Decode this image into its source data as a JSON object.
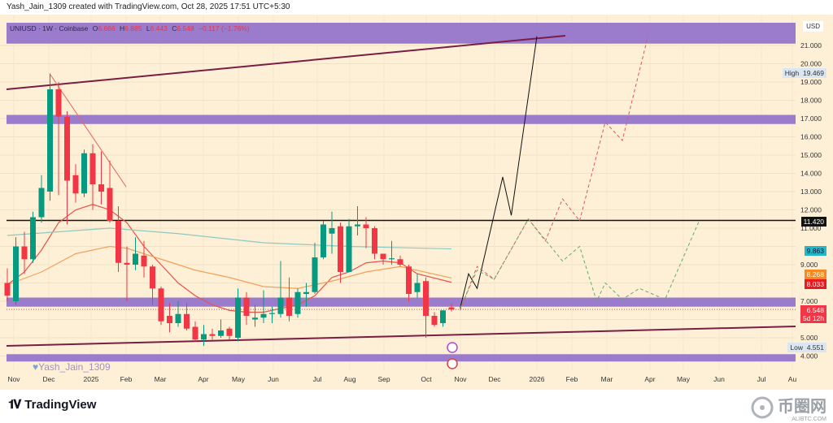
{
  "credit": "Yash_Jain_1309 created with TradingView.com, Oct 28, 2025 17:51 UTC+5:30",
  "symbol_bar": {
    "symbol": "UNIUSD · 1W · Coinbase",
    "o_label": "O",
    "o": "6.666",
    "h_label": "H",
    "h": "6.885",
    "l_label": "L",
    "l": "6.443",
    "c_label": "C",
    "c": "6.548",
    "change": "−0.117 (−1.76%)"
  },
  "currency": "USD",
  "signature": "Yash_Jain_1309",
  "branding": {
    "tradingview": "TradingView",
    "watermark_cn": "币圈网",
    "watermark_en": "ALIBTC.COM"
  },
  "price_labels": {
    "high_label": "High",
    "high": "19.469",
    "level": "11.420",
    "ma_teal": "9.863",
    "ma_orange": "8.268",
    "ma_red": "8.033",
    "last": "6.548",
    "countdown": "5d 12h",
    "low_label": "Low",
    "low": "4.551"
  },
  "colors": {
    "up": "#089981",
    "down": "#f23645",
    "band": "#9b7ccc",
    "trend": "#7a1d45",
    "bg": "#fdf0d6"
  },
  "chart_data": {
    "type": "candlestick",
    "title": "UNIUSD 1W Coinbase",
    "ylabel": "USD",
    "ylim": [
      3.7,
      21.6
    ],
    "y_ticks": [
      "21.000",
      "20.000",
      "19.000",
      "18.000",
      "17.000",
      "16.000",
      "15.000",
      "14.000",
      "13.000",
      "12.000",
      "11.000",
      "9.000",
      "7.000",
      "5.000",
      "4.000"
    ],
    "x_ticks": [
      "Nov",
      "Dec",
      "2025",
      "Feb",
      "Mar",
      "Apr",
      "May",
      "Jun",
      "Jul",
      "Aug",
      "Sep",
      "Oct",
      "Nov",
      "Dec",
      "2026",
      "Feb",
      "Mar",
      "Apr",
      "May",
      "Jun",
      "Jul",
      "Au"
    ],
    "candles_ohlc": [
      [
        8.0,
        8.8,
        7.0,
        7.3
      ],
      [
        7.0,
        10.5,
        6.8,
        10.0
      ],
      [
        10.0,
        10.8,
        8.5,
        9.3
      ],
      [
        9.3,
        11.9,
        9.1,
        11.6
      ],
      [
        11.6,
        13.9,
        11.3,
        13.2
      ],
      [
        13.0,
        19.469,
        12.5,
        18.6
      ],
      [
        18.6,
        19.0,
        12.8,
        17.1
      ],
      [
        17.1,
        17.4,
        11.2,
        13.6
      ],
      [
        13.9,
        14.5,
        12.4,
        12.9
      ],
      [
        12.9,
        15.3,
        12.7,
        15.1
      ],
      [
        15.1,
        15.6,
        12.0,
        13.4
      ],
      [
        13.4,
        15.2,
        12.3,
        13.0
      ],
      [
        13.2,
        14.7,
        11.3,
        11.4
      ],
      [
        11.4,
        12.2,
        8.6,
        9.1
      ],
      [
        9.1,
        10.0,
        7.0,
        9.0
      ],
      [
        9.0,
        10.5,
        8.7,
        9.6
      ],
      [
        9.5,
        10.3,
        8.3,
        8.9
      ],
      [
        8.9,
        9.0,
        6.8,
        7.7
      ],
      [
        7.7,
        7.8,
        5.7,
        5.9
      ],
      [
        6.2,
        6.9,
        5.3,
        5.8
      ],
      [
        5.8,
        7.0,
        5.6,
        6.3
      ],
      [
        6.3,
        6.9,
        5.4,
        5.5
      ],
      [
        5.6,
        5.9,
        4.8,
        4.9
      ],
      [
        4.9,
        5.7,
        4.551,
        5.2
      ],
      [
        5.2,
        5.5,
        4.9,
        5.1
      ],
      [
        5.1,
        6.0,
        5.0,
        5.4
      ],
      [
        5.5,
        5.6,
        4.9,
        5.1
      ],
      [
        5.0,
        7.7,
        4.8,
        7.2
      ],
      [
        7.2,
        7.5,
        5.7,
        6.2
      ],
      [
        6.0,
        6.8,
        5.6,
        6.1
      ],
      [
        6.1,
        7.6,
        5.8,
        6.3
      ],
      [
        6.3,
        6.7,
        5.8,
        6.35
      ],
      [
        6.3,
        9.2,
        6.1,
        7.2
      ],
      [
        7.2,
        8.3,
        5.9,
        6.2
      ],
      [
        6.3,
        7.7,
        6.1,
        7.5
      ],
      [
        7.4,
        8.0,
        6.7,
        7.5
      ],
      [
        7.5,
        10.2,
        7.4,
        9.4
      ],
      [
        9.4,
        11.4,
        9.3,
        11.2
      ],
      [
        10.7,
        11.9,
        9.6,
        11.0
      ],
      [
        11.1,
        11.3,
        8.0,
        8.6
      ],
      [
        8.6,
        11.5,
        8.6,
        11.1
      ],
      [
        11.1,
        12.2,
        10.6,
        11.2
      ],
      [
        11.2,
        11.6,
        9.9,
        11.0
      ],
      [
        11.0,
        11.1,
        9.3,
        9.6
      ],
      [
        9.6,
        9.6,
        9.0,
        9.3
      ],
      [
        9.3,
        10.3,
        9.0,
        9.35
      ],
      [
        9.3,
        9.5,
        8.9,
        9.0
      ],
      [
        8.9,
        9.0,
        7.0,
        7.4
      ],
      [
        7.5,
        8.5,
        7.2,
        8.0
      ],
      [
        8.1,
        8.3,
        5.0,
        6.2
      ],
      [
        6.2,
        6.4,
        5.6,
        5.7
      ],
      [
        5.8,
        6.5,
        5.6,
        6.5
      ],
      [
        6.666,
        6.885,
        6.443,
        6.548
      ]
    ],
    "moving_averages": [
      {
        "name": "fast",
        "color": "#e8524a",
        "points": [
          [
            0,
            7.9
          ],
          [
            2,
            8.6
          ],
          [
            4,
            9.8
          ],
          [
            6,
            11.3
          ],
          [
            8,
            12.0
          ],
          [
            10,
            12.3
          ],
          [
            12,
            12.0
          ],
          [
            14,
            11.3
          ],
          [
            16,
            10.0
          ],
          [
            18,
            9.0
          ],
          [
            20,
            8.0
          ],
          [
            22,
            7.3
          ],
          [
            24,
            6.8
          ],
          [
            26,
            6.5
          ],
          [
            28,
            6.4
          ],
          [
            30,
            6.4
          ],
          [
            32,
            6.6
          ],
          [
            34,
            6.8
          ],
          [
            36,
            7.3
          ],
          [
            38,
            8.3
          ],
          [
            40,
            8.6
          ],
          [
            42,
            9.1
          ],
          [
            44,
            9.2
          ],
          [
            46,
            9.1
          ],
          [
            48,
            8.5
          ],
          [
            52,
            8.033
          ]
        ]
      },
      {
        "name": "mid",
        "color": "#f5a05a",
        "points": [
          [
            0,
            7.9
          ],
          [
            4,
            8.6
          ],
          [
            8,
            9.6
          ],
          [
            12,
            10.0
          ],
          [
            14,
            9.9
          ],
          [
            18,
            9.3
          ],
          [
            22,
            8.7
          ],
          [
            26,
            8.3
          ],
          [
            30,
            7.8
          ],
          [
            34,
            7.7
          ],
          [
            38,
            8.1
          ],
          [
            42,
            8.6
          ],
          [
            46,
            8.9
          ],
          [
            52,
            8.268
          ]
        ]
      },
      {
        "name": "slow",
        "color": "#8ec9c0",
        "points": [
          [
            0,
            10.6
          ],
          [
            6,
            10.8
          ],
          [
            12,
            11.0
          ],
          [
            20,
            10.7
          ],
          [
            30,
            10.2
          ],
          [
            40,
            10.0
          ],
          [
            52,
            9.863
          ]
        ]
      }
    ],
    "horizontal_level": 11.42,
    "bands": [
      [
        21.1,
        21.7
      ],
      [
        16.7,
        17.2
      ],
      [
        6.7,
        7.2
      ],
      [
        3.7,
        4.1
      ]
    ],
    "projections": [
      {
        "name": "main",
        "style": "solid",
        "points": [
          [
            53,
            6.6
          ],
          [
            54,
            8.5
          ],
          [
            55,
            7.7
          ],
          [
            58,
            13.8
          ],
          [
            59,
            11.7
          ],
          [
            62,
            21.5
          ]
        ]
      },
      {
        "name": "bull",
        "style": "dashed",
        "points": [
          [
            53,
            6.5
          ],
          [
            55,
            8.9
          ],
          [
            57,
            8.2
          ],
          [
            61,
            11.5
          ],
          [
            63,
            10.3
          ],
          [
            65,
            12.6
          ],
          [
            67,
            11.4
          ],
          [
            70,
            16.8
          ],
          [
            72,
            15.8
          ],
          [
            75,
            21.5
          ]
        ]
      },
      {
        "name": "alt",
        "style": "dashed",
        "points": [
          [
            53,
            6.6
          ],
          [
            55,
            8.7
          ],
          [
            57,
            8.2
          ],
          [
            61,
            11.5
          ],
          [
            65,
            9.2
          ],
          [
            67,
            10.0
          ],
          [
            69,
            7.0
          ],
          [
            70,
            8.0
          ],
          [
            72,
            7.1
          ],
          [
            74,
            7.7
          ],
          [
            77,
            7.1
          ],
          [
            81,
            11.4
          ]
        ]
      }
    ]
  }
}
